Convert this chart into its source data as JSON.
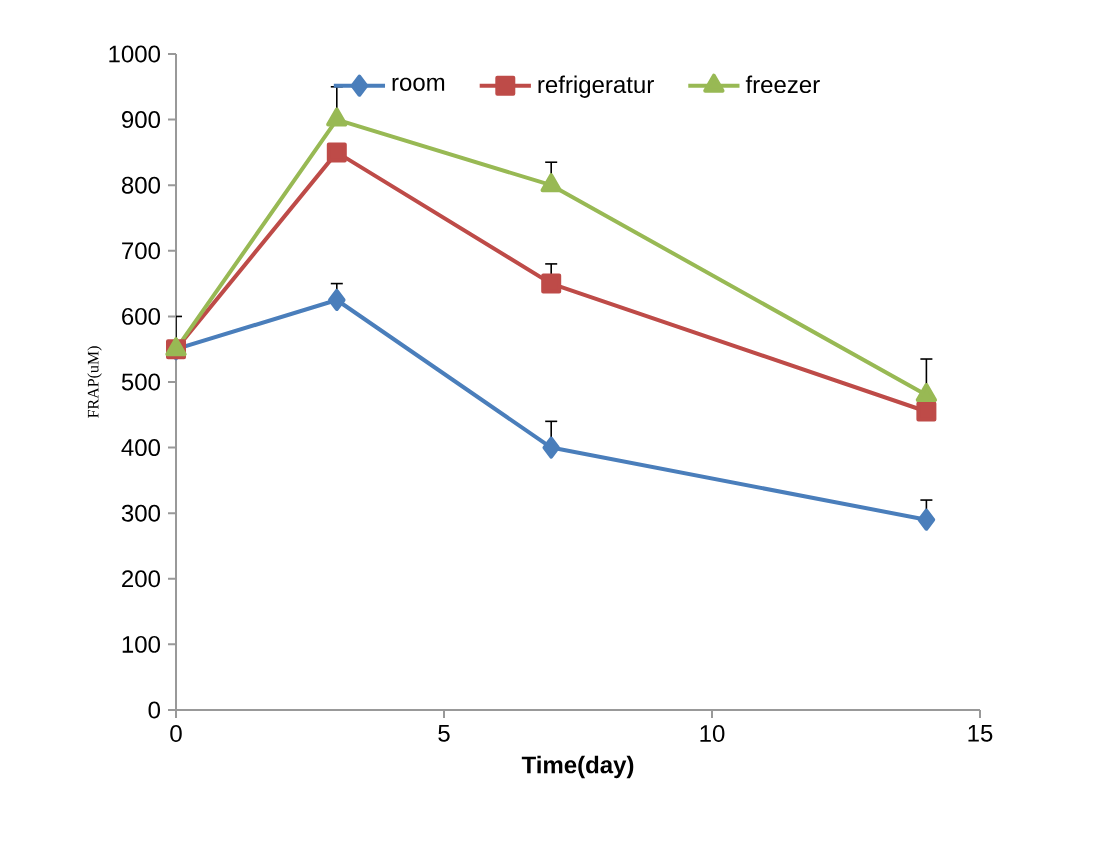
{
  "chart_data": {
    "type": "line",
    "xlabel": "Time(day)",
    "ylabel": "FRAP(uM)",
    "xlim": [
      0,
      15
    ],
    "xticks": [
      0,
      5,
      10,
      15
    ],
    "ylim": [
      0,
      1000
    ],
    "yticks": [
      0,
      100,
      200,
      300,
      400,
      500,
      600,
      700,
      800,
      900,
      1000
    ],
    "legend": "top",
    "grid": false,
    "x": [
      0,
      3,
      7,
      14
    ],
    "series": [
      {
        "name": "room",
        "color": "#4a7ebb",
        "marker": "diamond",
        "values": [
          550,
          625,
          400,
          290
        ],
        "errors": [
          null,
          [
            625,
            650
          ],
          [
            400,
            440
          ],
          [
            290,
            320
          ]
        ]
      },
      {
        "name": "refrigeratur",
        "color": "#be4b48",
        "marker": "square",
        "values": [
          550,
          850,
          650,
          455
        ],
        "errors": [
          [
            550,
            600
          ],
          null,
          [
            650,
            680
          ],
          null
        ]
      },
      {
        "name": "freezer",
        "color": "#98b954",
        "marker": "triangle",
        "values": [
          550,
          900,
          800,
          480
        ],
        "errors": [
          null,
          [
            900,
            950
          ],
          [
            800,
            835
          ],
          [
            480,
            535
          ]
        ]
      }
    ]
  }
}
